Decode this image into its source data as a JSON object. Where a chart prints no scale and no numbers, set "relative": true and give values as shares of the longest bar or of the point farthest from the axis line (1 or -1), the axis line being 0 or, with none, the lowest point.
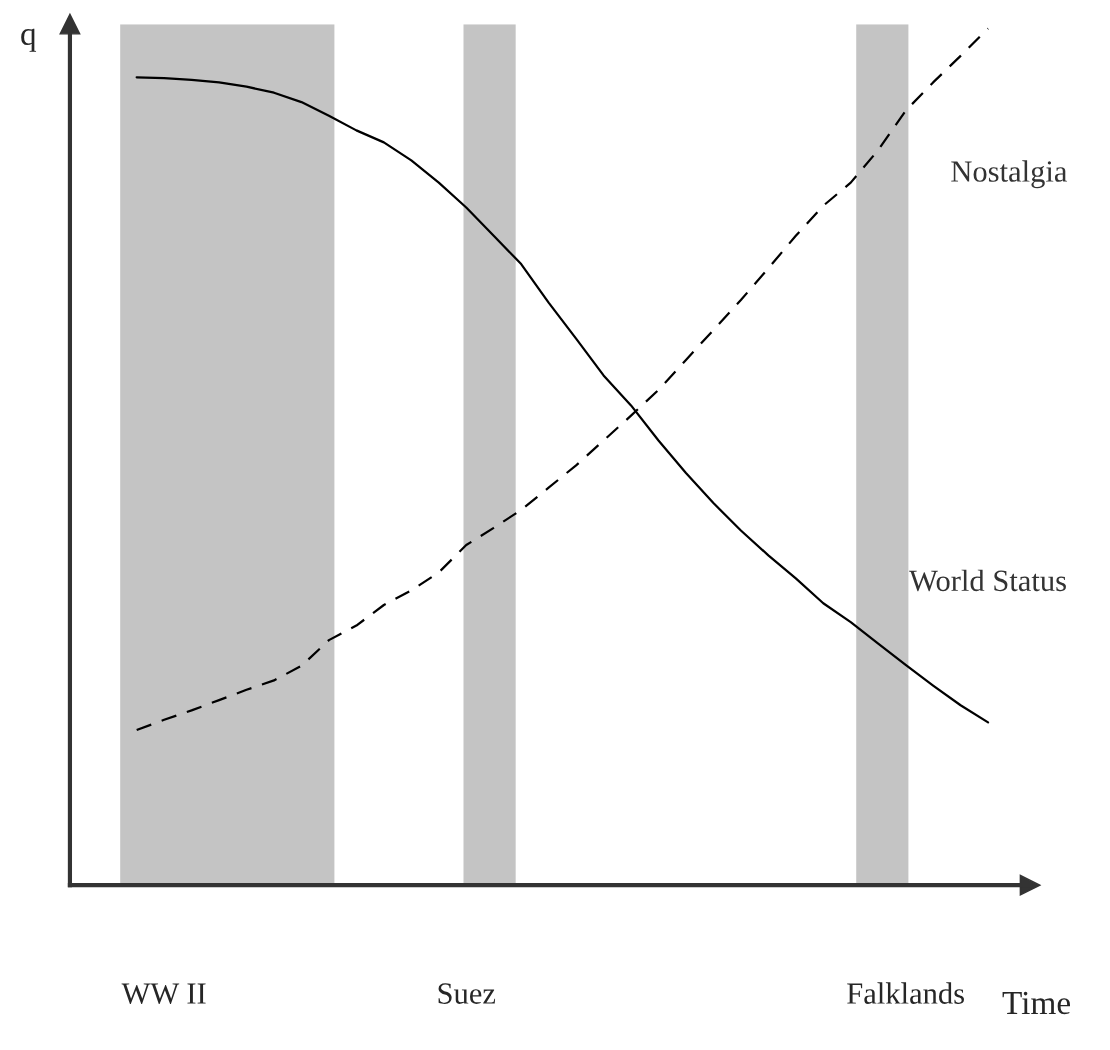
{
  "chart_data": {
    "type": "line",
    "relative": true,
    "ylabel": "q",
    "xlabel": "Time",
    "tick_labels": "x",
    "marker": "none",
    "categories": [
      null,
      "WW II",
      null,
      null,
      null,
      null,
      null,
      null,
      null,
      null,
      null,
      null,
      "Suez",
      null,
      null,
      null,
      null,
      null,
      null,
      null,
      null,
      null,
      null,
      null,
      null,
      null,
      null,
      null,
      "Falklands",
      null,
      null,
      null
    ],
    "series": [
      {
        "name": "World Status",
        "color": "#000000",
        "line_style": "solid",
        "values": [
          0.943,
          0.942,
          0.94,
          0.937,
          0.932,
          0.925,
          0.914,
          0.898,
          0.881,
          0.867,
          0.846,
          0.82,
          0.791,
          0.758,
          0.725,
          0.68,
          0.638,
          0.595,
          0.56,
          0.519,
          0.481,
          0.446,
          0.414,
          0.385,
          0.358,
          0.329,
          0.307,
          0.282,
          0.257,
          0.233,
          0.21,
          0.19
        ]
      },
      {
        "name": "Nostalgia",
        "color": "#000000",
        "line_style": "dashed",
        "values": [
          0.181,
          0.193,
          0.204,
          0.216,
          0.228,
          0.239,
          0.256,
          0.286,
          0.303,
          0.327,
          0.344,
          0.365,
          0.397,
          0.417,
          0.438,
          0.464,
          0.49,
          0.519,
          0.548,
          0.578,
          0.613,
          0.648,
          0.683,
          0.72,
          0.758,
          0.793,
          0.82,
          0.858,
          0.904,
          0.937,
          0.968,
          1.0
        ]
      }
    ]
  }
}
